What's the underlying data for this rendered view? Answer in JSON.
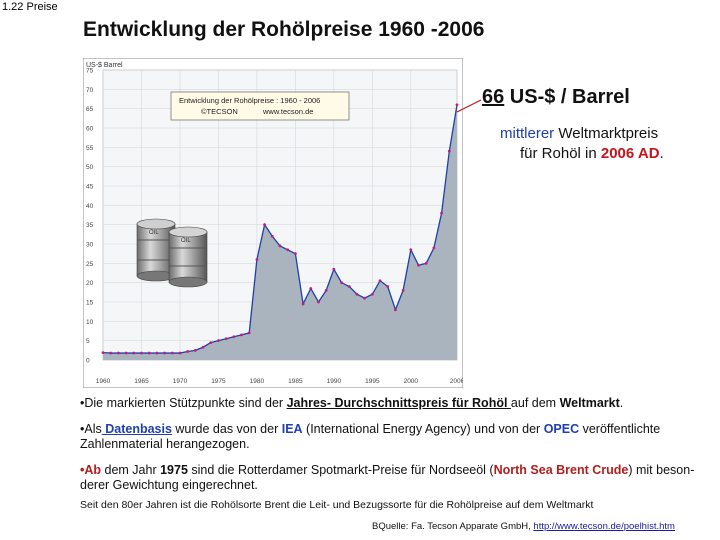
{
  "slide": {
    "number": "1.22",
    "section": "Preise"
  },
  "title": "Entwicklung der Rohölpreise 1960 -2006",
  "chart_data": {
    "type": "area",
    "ylabel": "US-$ Barrel",
    "inset_title": "Entwicklung der Rohölpreise :  1960 - 2006",
    "inset_source_left": "©TECSON",
    "inset_source_right": "www.tecson.de",
    "barrel_label": "OIL",
    "xlim": [
      1960,
      2006
    ],
    "ylim": [
      0,
      75
    ],
    "x_ticks": [
      "1960",
      "1965",
      "1970",
      "1975",
      "1980",
      "1985",
      "1990",
      "1995",
      "2000",
      "2006"
    ],
    "y_ticks": [
      "0",
      "5",
      "10",
      "15",
      "20",
      "25",
      "30",
      "35",
      "40",
      "45",
      "50",
      "55",
      "60",
      "65",
      "70",
      "75"
    ],
    "grid": true,
    "colors": {
      "fill": "#a9b4bf",
      "line": "#1f3fae",
      "marker": "#c21d7e"
    },
    "series": [
      {
        "x": [
          1960,
          1961,
          1962,
          1963,
          1964,
          1965,
          1966,
          1967,
          1968,
          1969,
          1970,
          1971,
          1972,
          1973,
          1974,
          1975,
          1976,
          1977,
          1978,
          1979,
          1980,
          1981,
          1982,
          1983,
          1984,
          1985,
          1986,
          1987,
          1988,
          1989,
          1990,
          1991,
          1992,
          1993,
          1994,
          1995,
          1996,
          1997,
          1998,
          1999,
          2000,
          2001,
          2002,
          2003,
          2004,
          2005,
          2006
        ],
        "values": [
          1.9,
          1.8,
          1.8,
          1.8,
          1.8,
          1.8,
          1.8,
          1.8,
          1.8,
          1.8,
          1.8,
          2.2,
          2.5,
          3.3,
          4.5,
          5.0,
          5.5,
          6.0,
          6.5,
          7.0,
          26.0,
          35.0,
          32.0,
          29.5,
          28.5,
          27.5,
          14.5,
          18.5,
          15.0,
          18.0,
          23.5,
          20.0,
          19.0,
          17.0,
          16.0,
          17.0,
          20.5,
          19.0,
          13.0,
          18.0,
          28.5,
          24.5,
          25.0,
          29.0,
          38.0,
          54.0,
          66.0
        ]
      }
    ]
  },
  "callout": {
    "price_value": "66",
    "price_unit": " US-$ / Barrel",
    "line1_highlight": "mittlerer",
    "line1_rest": " Weltmarktpreis",
    "line2_prefix": "für  Rohöl in ",
    "line2_year": "2006 AD",
    "line2_end": "."
  },
  "bullets": [
    {
      "t1": "•Die markierten Stützpunkte sind der ",
      "b1": "Jahres- Durchschnittspreis für Rohöl ",
      "t2": "auf dem ",
      "b2": "Weltmarkt",
      "t3": "."
    },
    {
      "t1": "•Als",
      "link": " Datenbasis",
      "t2": " wurde das von der ",
      "iea": "IEA",
      "t3": " (International Energy Agency) und von der ",
      "opec": "OPEC",
      "t4": " veröffentlichte Zahlenmaterial herangezogen."
    },
    {
      "ab": "•Ab",
      "t1": " dem Jahr ",
      "year": "1975",
      "t2": " sind die Rotterdamer Spotmarkt-Preise für Nordseeöl (",
      "brent": "North Sea Brent Crude",
      "t3": ") mit beson-derer Gewichtung eingerechnet."
    }
  ],
  "note": "Seit den 80er Jahren ist die Rohölsorte Brent die Leit- und Bezugssorte für die Rohölpreise auf dem Weltmarkt",
  "source": {
    "label": "BQuelle: Fa. Tecson Apparate GmbH,  ",
    "url": "http://www.tecson.de/poelhist.htm"
  }
}
